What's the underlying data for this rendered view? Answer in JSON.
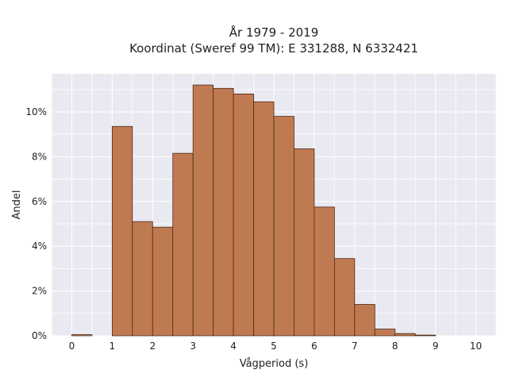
{
  "chart_data": {
    "type": "bar",
    "title": "År 1979 - 2019",
    "subtitle": "Koordinat (Sweref 99 TM): E 331288, N 6332421",
    "xlabel": "Vågperiod (s)",
    "ylabel": "Andel",
    "bin_width": 0.5,
    "bin_starts": [
      0,
      0.5,
      1,
      1.5,
      2,
      2.5,
      3,
      3.5,
      4,
      4.5,
      5,
      5.5,
      6,
      6.5,
      7,
      7.5,
      8,
      8.5,
      9,
      9.5
    ],
    "values": [
      0.05,
      0,
      9.35,
      5.1,
      4.85,
      8.15,
      11.2,
      11.05,
      10.8,
      10.45,
      9.8,
      8.35,
      5.75,
      3.45,
      1.4,
      0.3,
      0.1,
      0.03,
      0,
      0
    ],
    "xlim": [
      -0.5,
      10.5
    ],
    "ylim": [
      0,
      11.7
    ],
    "x_ticks": [
      0,
      1,
      2,
      3,
      4,
      5,
      6,
      7,
      8,
      9,
      10
    ],
    "x_tick_labels": [
      "0",
      "1",
      "2",
      "3",
      "4",
      "5",
      "6",
      "7",
      "8",
      "9",
      "10"
    ],
    "y_ticks": [
      0,
      2,
      4,
      6,
      8,
      10
    ],
    "y_tick_labels": [
      "0%",
      "2%",
      "4%",
      "6%",
      "8%",
      "10%"
    ],
    "grid": true,
    "bar_color": "#c07a52",
    "bar_edge_color": "#4a2a16",
    "plot_background": "#e9e9f1",
    "text_color": "#222222"
  }
}
